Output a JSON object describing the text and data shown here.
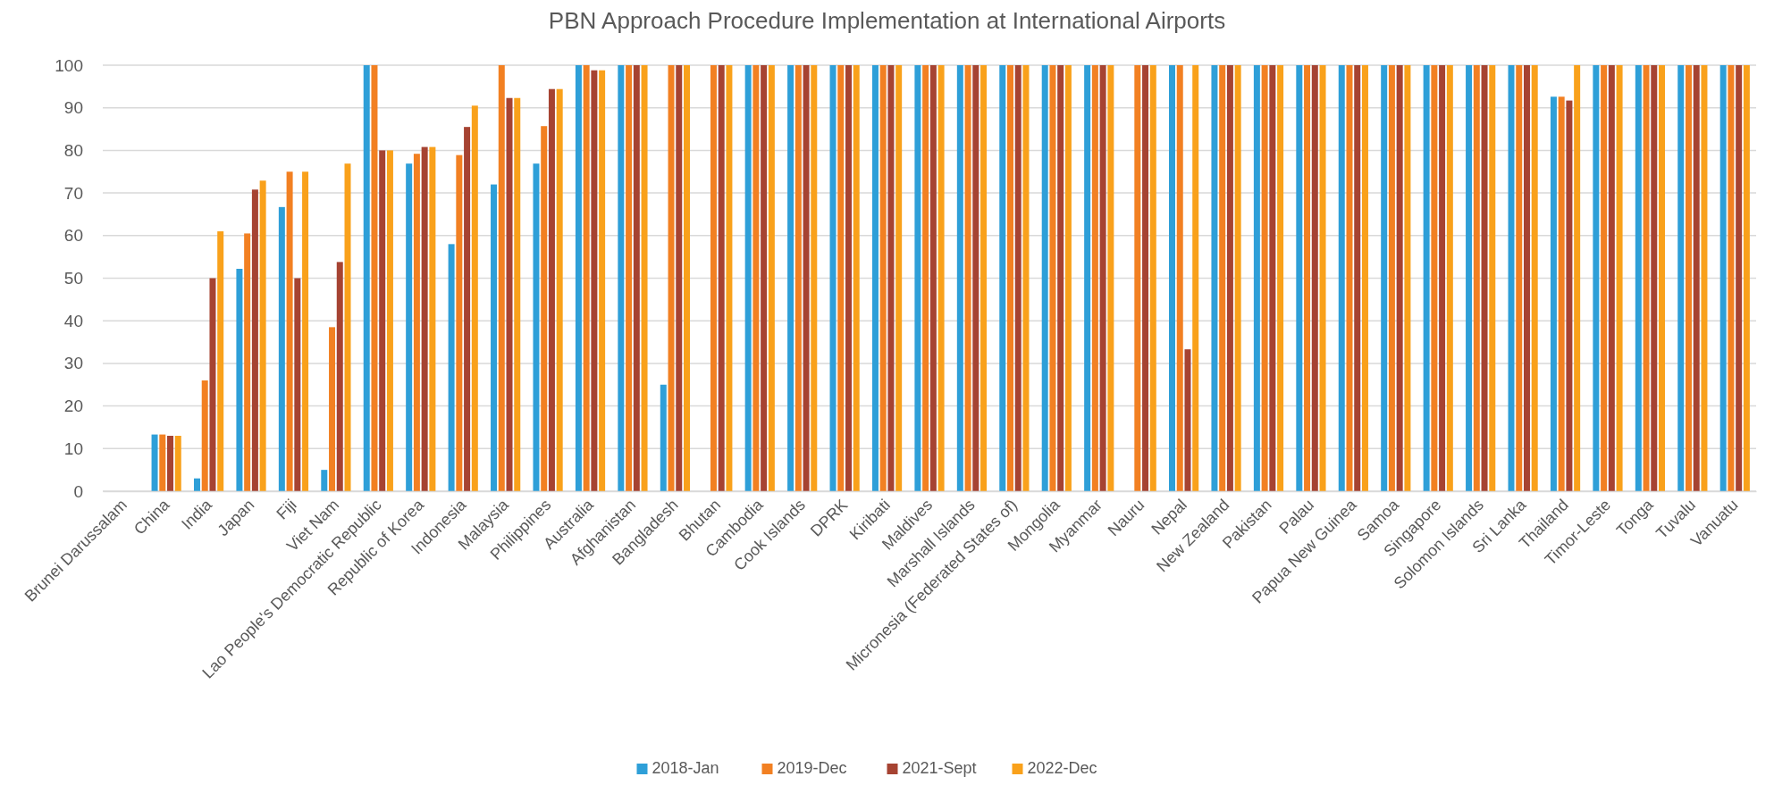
{
  "chart_data": {
    "type": "bar",
    "title": "PBN Approach Procedure Implementation at International Airports",
    "categories": [
      "Brunei Darussalam",
      "China",
      "India",
      "Japan",
      "Fiji",
      "Viet Nam",
      "Lao People's Democratic Republic",
      "Republic of Korea",
      "Indonesia",
      "Malaysia",
      "Philippines",
      "Australia",
      "Afghanistan",
      "Bangladesh",
      "Bhutan",
      "Cambodia",
      "Cook Islands",
      "DPRK",
      "Kiribati",
      "Maldives",
      "Marshall Islands",
      "Micronesia (Federated States of)",
      "Mongolia",
      "Myanmar",
      "Nauru",
      "Nepal",
      "New Zealand",
      "Pakistan",
      "Palau",
      "Papua New Guinea",
      "Samoa",
      "Singapore",
      "Solomon Islands",
      "Sri Lanka",
      "Thailand",
      "Timor-Leste",
      "Tonga",
      "Tuvalu",
      "Vanuatu"
    ],
    "series": [
      {
        "name": "2018-Jan",
        "color": "#2e9fd8",
        "values": [
          null,
          13.3,
          3,
          52.2,
          66.7,
          5,
          100,
          76.9,
          58,
          72,
          76.9,
          100,
          100,
          25,
          null,
          100,
          100,
          100,
          100,
          100,
          100,
          100,
          100,
          100,
          null,
          100,
          100,
          100,
          100,
          100,
          100,
          100,
          100,
          100,
          92.6,
          100,
          100,
          100,
          100
        ]
      },
      {
        "name": "2019-Dec",
        "color": "#f28022",
        "values": [
          null,
          13.3,
          26,
          60.5,
          75,
          38.5,
          100,
          79.2,
          78.9,
          100,
          85.7,
          100,
          100,
          100,
          100,
          100,
          100,
          100,
          100,
          100,
          100,
          100,
          100,
          100,
          100,
          100,
          100,
          100,
          100,
          100,
          100,
          100,
          100,
          100,
          92.6,
          100,
          100,
          100,
          100
        ]
      },
      {
        "name": "2021-Sept",
        "color": "#a64332",
        "values": [
          null,
          13,
          50,
          70.8,
          50,
          53.8,
          80,
          80.8,
          85.5,
          92.3,
          94.4,
          98.8,
          100,
          100,
          100,
          100,
          100,
          100,
          100,
          100,
          100,
          100,
          100,
          100,
          100,
          33.3,
          100,
          100,
          100,
          100,
          100,
          100,
          100,
          100,
          91.7,
          100,
          100,
          100,
          100
        ]
      },
      {
        "name": "2022-Dec",
        "color": "#f9a11b",
        "values": [
          null,
          13,
          61,
          72.9,
          75,
          76.9,
          80,
          80.8,
          90.5,
          92.3,
          94.4,
          98.8,
          100,
          100,
          100,
          100,
          100,
          100,
          100,
          100,
          100,
          100,
          100,
          100,
          100,
          100,
          100,
          100,
          100,
          100,
          100,
          100,
          100,
          100,
          100,
          100,
          100,
          100,
          100
        ]
      }
    ],
    "ylim": [
      0,
      100
    ],
    "yticks": [
      0,
      10,
      20,
      30,
      40,
      50,
      60,
      70,
      80,
      90,
      100
    ],
    "grid": "y",
    "legend": "bottom"
  }
}
